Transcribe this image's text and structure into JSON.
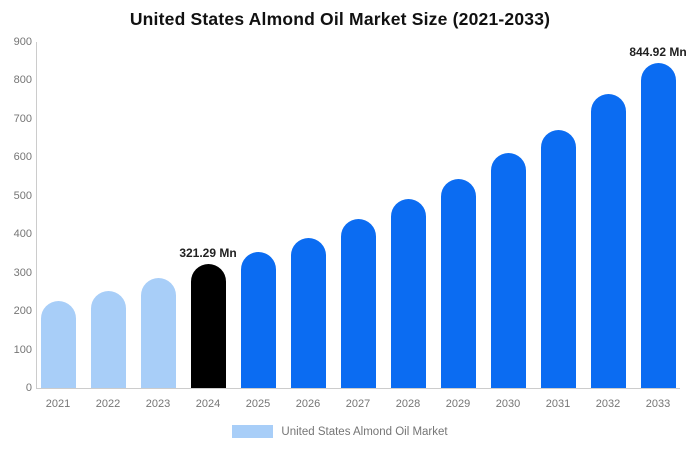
{
  "title": "United States Almond Oil Market Size (2021-2033)",
  "legend": {
    "label": "United States Almond Oil Market",
    "swatch_color": "#A8CEF8"
  },
  "colors": {
    "historical_bar": "#A8CEF8",
    "highlight_bar": "#000000",
    "forecast_bar": "#0B6CF2",
    "axis_line": "#cccccc",
    "tick_text": "#757575",
    "annotation_text": "#222222"
  },
  "chart_data": {
    "type": "bar",
    "title": "United States Almond Oil Market Size (2021-2033)",
    "unit": "Mn",
    "categories": [
      "2021",
      "2022",
      "2023",
      "2024",
      "2025",
      "2026",
      "2027",
      "2028",
      "2029",
      "2030",
      "2031",
      "2032",
      "2033"
    ],
    "values": [
      226,
      252,
      285,
      321.29,
      354,
      389,
      440,
      491,
      544,
      610,
      670,
      764,
      844.92
    ],
    "bar_colors": [
      "#A8CEF8",
      "#A8CEF8",
      "#A8CEF8",
      "#000000",
      "#0B6CF2",
      "#0B6CF2",
      "#0B6CF2",
      "#0B6CF2",
      "#0B6CF2",
      "#0B6CF2",
      "#0B6CF2",
      "#0B6CF2",
      "#0B6CF2"
    ],
    "annotations": [
      {
        "category": "2024",
        "text": "321.29 Mn"
      },
      {
        "category": "2033",
        "text": "844.92 Mn"
      }
    ],
    "yticks": [
      0,
      100,
      200,
      300,
      400,
      500,
      600,
      700,
      800,
      900
    ],
    "ylim": [
      0,
      900
    ],
    "grid": false,
    "legend_position": "bottom-center",
    "xlabel": "",
    "ylabel": ""
  }
}
